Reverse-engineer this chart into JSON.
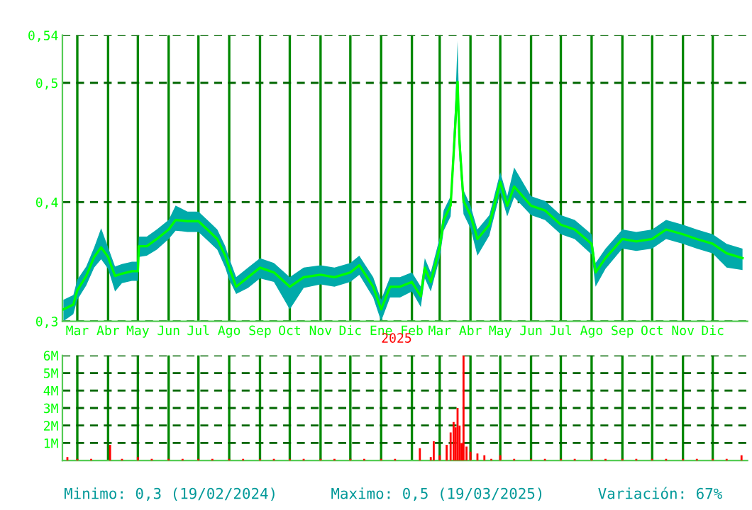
{
  "chart_data": [
    {
      "type": "line",
      "xlim": [
        "2024-02-15",
        "2026-01-05"
      ],
      "ylim": [
        0.3,
        0.54
      ],
      "yticks": [
        {
          "value": 0.3,
          "label": "0,3"
        },
        {
          "value": 0.4,
          "label": "0,4"
        },
        {
          "value": 0.5,
          "label": "0,5"
        },
        {
          "value": 0.54,
          "label": "0,54"
        }
      ],
      "xticks": [
        {
          "value": "2024-03-01",
          "label": "Mar"
        },
        {
          "value": "2024-04-01",
          "label": "Abr"
        },
        {
          "value": "2024-05-01",
          "label": "May"
        },
        {
          "value": "2024-06-01",
          "label": "Jun"
        },
        {
          "value": "2024-07-01",
          "label": "Jul"
        },
        {
          "value": "2024-08-01",
          "label": "Ago"
        },
        {
          "value": "2024-09-01",
          "label": "Sep"
        },
        {
          "value": "2024-10-01",
          "label": "Oct"
        },
        {
          "value": "2024-11-01",
          "label": "Nov"
        },
        {
          "value": "2024-12-01",
          "label": "Dic"
        },
        {
          "value": "2025-01-01",
          "label": "Ene"
        },
        {
          "value": "2025-02-01",
          "label": "Feb"
        },
        {
          "value": "2025-03-01",
          "label": "Mar"
        },
        {
          "value": "2025-04-01",
          "label": "Abr"
        },
        {
          "value": "2025-05-01",
          "label": "May"
        },
        {
          "value": "2025-06-01",
          "label": "Jun"
        },
        {
          "value": "2025-07-01",
          "label": "Jul"
        },
        {
          "value": "2025-08-01",
          "label": "Ago"
        },
        {
          "value": "2025-09-01",
          "label": "Sep"
        },
        {
          "value": "2025-10-01",
          "label": "Oct"
        },
        {
          "value": "2025-11-01",
          "label": "Nov"
        },
        {
          "value": "2025-12-01",
          "label": "Dic"
        }
      ],
      "grid": true,
      "annotations": [
        {
          "text": "2025",
          "x": "2025-01-01",
          "y": 0.3
        },
        "Minimo: 0,3 (19/02/2024)",
        "Maximo: 0,5 (19/03/2025)",
        "Variación: 67%"
      ],
      "series": [
        {
          "color": "#00ff00",
          "x": [
            "2024-02-16",
            "2024-02-26",
            "2024-03-01",
            "2024-03-10",
            "2024-03-18",
            "2024-03-25",
            "2024-04-01",
            "2024-04-08",
            "2024-04-15",
            "2024-04-25",
            "2024-05-01",
            "2024-05-02",
            "2024-05-10",
            "2024-05-20",
            "2024-06-01",
            "2024-06-08",
            "2024-06-20",
            "2024-07-01",
            "2024-07-10",
            "2024-07-20",
            "2024-07-28",
            "2024-08-01",
            "2024-08-08",
            "2024-08-20",
            "2024-09-01",
            "2024-09-15",
            "2024-10-01",
            "2024-10-15",
            "2024-11-01",
            "2024-11-15",
            "2024-12-01",
            "2024-12-10",
            "2024-12-24",
            "2025-01-01",
            "2025-01-10",
            "2025-01-20",
            "2025-02-01",
            "2025-02-10",
            "2025-02-14",
            "2025-02-20",
            "2025-03-01",
            "2025-03-05",
            "2025-03-12",
            "2025-03-17",
            "2025-03-19",
            "2025-03-21",
            "2025-03-25",
            "2025-04-01",
            "2025-04-08",
            "2025-04-20",
            "2025-05-01",
            "2025-05-08",
            "2025-05-15",
            "2025-06-01",
            "2025-06-15",
            "2025-07-01",
            "2025-07-15",
            "2025-08-01",
            "2025-08-05",
            "2025-08-15",
            "2025-09-01",
            "2025-09-15",
            "2025-10-01",
            "2025-10-15",
            "2025-11-01",
            "2025-11-15",
            "2025-12-01",
            "2025-12-15",
            "2025-12-31"
          ],
          "values": [
            0.31,
            0.314,
            0.326,
            0.338,
            0.354,
            0.362,
            0.354,
            0.338,
            0.34,
            0.342,
            0.342,
            0.363,
            0.363,
            0.369,
            0.377,
            0.385,
            0.384,
            0.384,
            0.377,
            0.369,
            0.355,
            0.345,
            0.329,
            0.337,
            0.345,
            0.341,
            0.329,
            0.337,
            0.339,
            0.337,
            0.341,
            0.347,
            0.329,
            0.31,
            0.329,
            0.329,
            0.333,
            0.321,
            0.345,
            0.333,
            0.362,
            0.385,
            0.397,
            0.469,
            0.501,
            0.449,
            0.401,
            0.389,
            0.369,
            0.381,
            0.417,
            0.397,
            0.413,
            0.397,
            0.393,
            0.381,
            0.377,
            0.365,
            0.341,
            0.353,
            0.369,
            0.367,
            0.369,
            0.377,
            0.373,
            0.369,
            0.365,
            0.357,
            0.353
          ],
          "lower": [
            0.3,
            0.306,
            0.318,
            0.33,
            0.345,
            0.352,
            0.344,
            0.325,
            0.332,
            0.334,
            0.334,
            0.354,
            0.355,
            0.36,
            0.369,
            0.376,
            0.375,
            0.375,
            0.368,
            0.36,
            0.345,
            0.335,
            0.323,
            0.328,
            0.336,
            0.333,
            0.31,
            0.328,
            0.331,
            0.329,
            0.333,
            0.339,
            0.32,
            0.3,
            0.32,
            0.32,
            0.325,
            0.312,
            0.336,
            0.325,
            0.353,
            0.376,
            0.388,
            0.455,
            0.49,
            0.435,
            0.39,
            0.378,
            0.355,
            0.372,
            0.408,
            0.388,
            0.404,
            0.389,
            0.385,
            0.373,
            0.369,
            0.356,
            0.329,
            0.344,
            0.361,
            0.359,
            0.361,
            0.369,
            0.365,
            0.361,
            0.357,
            0.345,
            0.343
          ],
          "upper": [
            0.318,
            0.322,
            0.335,
            0.346,
            0.362,
            0.378,
            0.362,
            0.346,
            0.348,
            0.35,
            0.35,
            0.371,
            0.371,
            0.377,
            0.385,
            0.397,
            0.392,
            0.392,
            0.385,
            0.377,
            0.363,
            0.353,
            0.337,
            0.345,
            0.353,
            0.349,
            0.337,
            0.345,
            0.347,
            0.345,
            0.349,
            0.355,
            0.337,
            0.318,
            0.337,
            0.337,
            0.341,
            0.329,
            0.353,
            0.341,
            0.37,
            0.393,
            0.405,
            0.49,
            0.535,
            0.465,
            0.41,
            0.397,
            0.377,
            0.389,
            0.425,
            0.405,
            0.429,
            0.405,
            0.401,
            0.389,
            0.385,
            0.373,
            0.349,
            0.361,
            0.377,
            0.375,
            0.377,
            0.385,
            0.381,
            0.377,
            0.373,
            0.365,
            0.361
          ]
        }
      ]
    },
    {
      "type": "bar",
      "xlim": [
        "2024-02-15",
        "2026-01-05"
      ],
      "ylim": [
        0,
        6000000
      ],
      "yticks": [
        {
          "value": 1000000,
          "label": "1M"
        },
        {
          "value": 2000000,
          "label": "2M"
        },
        {
          "value": 3000000,
          "label": "3M"
        },
        {
          "value": 4000000,
          "label": "4M"
        },
        {
          "value": 5000000,
          "label": "5M"
        },
        {
          "value": 6000000,
          "label": "6M"
        }
      ],
      "xticks": [
        {
          "value": "2024-03-01",
          "label": null
        },
        {
          "value": "2024-04-01",
          "label": null
        },
        {
          "value": "2024-05-01",
          "label": null
        },
        {
          "value": "2024-06-01",
          "label": null
        },
        {
          "value": "2024-07-01",
          "label": null
        },
        {
          "value": "2024-08-01",
          "label": null
        },
        {
          "value": "2024-09-01",
          "label": null
        },
        {
          "value": "2024-10-01",
          "label": null
        },
        {
          "value": "2024-11-01",
          "label": null
        },
        {
          "value": "2024-12-01",
          "label": null
        },
        {
          "value": "2025-01-01",
          "label": null
        },
        {
          "value": "2025-02-01",
          "label": null
        },
        {
          "value": "2025-03-01",
          "label": null
        },
        {
          "value": "2025-04-01",
          "label": null
        },
        {
          "value": "2025-05-01",
          "label": null
        },
        {
          "value": "2025-06-01",
          "label": null
        },
        {
          "value": "2025-07-01",
          "label": null
        },
        {
          "value": "2025-08-01",
          "label": null
        },
        {
          "value": "2025-09-01",
          "label": null
        },
        {
          "value": "2025-10-01",
          "label": null
        },
        {
          "value": "2025-11-01",
          "label": null
        },
        {
          "value": "2025-12-01",
          "label": null
        }
      ],
      "tick_labels": "y",
      "grid": true,
      "series": [
        {
          "color": "#ff0000",
          "x": [
            "2024-02-20",
            "2024-03-01",
            "2024-03-15",
            "2024-04-03",
            "2024-04-15",
            "2024-05-01",
            "2024-05-15",
            "2024-06-01",
            "2024-06-15",
            "2024-07-01",
            "2024-07-15",
            "2024-08-01",
            "2024-08-15",
            "2024-09-01",
            "2024-09-15",
            "2024-10-01",
            "2024-10-15",
            "2024-11-01",
            "2024-11-15",
            "2024-12-01",
            "2024-12-15",
            "2025-01-01",
            "2025-01-15",
            "2025-02-09",
            "2025-02-20",
            "2025-02-23",
            "2025-03-01",
            "2025-03-08",
            "2025-03-12",
            "2025-03-15",
            "2025-03-17",
            "2025-03-19",
            "2025-03-21",
            "2025-03-23",
            "2025-03-25",
            "2025-03-28",
            "2025-04-01",
            "2025-04-08",
            "2025-04-15",
            "2025-04-22",
            "2025-05-01",
            "2025-05-15",
            "2025-06-01",
            "2025-06-15",
            "2025-07-01",
            "2025-07-15",
            "2025-08-01",
            "2025-08-15",
            "2025-09-01",
            "2025-09-15",
            "2025-10-01",
            "2025-10-15",
            "2025-11-01",
            "2025-11-15",
            "2025-12-01",
            "2025-12-15",
            "2025-12-30"
          ],
          "values": [
            200000,
            100000,
            100000,
            900000,
            100000,
            200000,
            100000,
            100000,
            100000,
            100000,
            100000,
            100000,
            100000,
            100000,
            100000,
            100000,
            100000,
            100000,
            100000,
            100000,
            100000,
            100000,
            100000,
            700000,
            200000,
            1100000,
            300000,
            900000,
            1600000,
            2200000,
            1900000,
            3000000,
            2000000,
            1000000,
            6000000,
            800000,
            500000,
            400000,
            300000,
            100000,
            300000,
            100000,
            100000,
            100000,
            100000,
            100000,
            100000,
            100000,
            100000,
            100000,
            100000,
            100000,
            100000,
            100000,
            100000,
            100000,
            300000
          ]
        }
      ]
    }
  ]
}
